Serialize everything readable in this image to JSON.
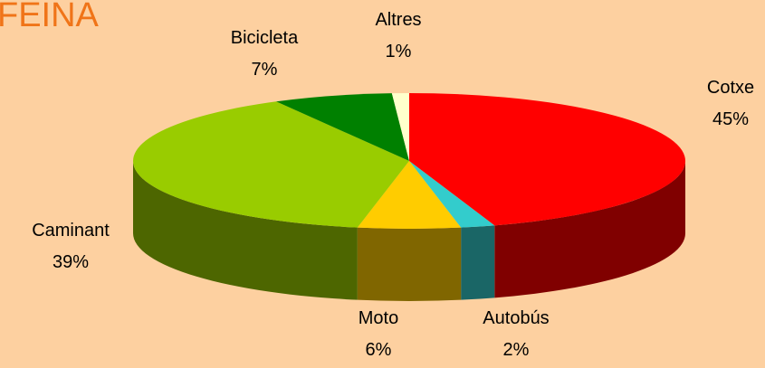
{
  "chart_data": {
    "type": "pie3d",
    "title": "FEINA",
    "categories": [
      "Cotxe",
      "Autobús",
      "Moto",
      "Caminant",
      "Bicicleta",
      "Altres"
    ],
    "values": [
      45,
      2,
      6,
      39,
      7,
      1
    ],
    "value_labels": [
      "45%",
      "2%",
      "6%",
      "39%",
      "7%",
      "1%"
    ],
    "colors": [
      "#ff0000",
      "#33cccc",
      "#ffcc00",
      "#99cc00",
      "#008000",
      "#ffffcc"
    ],
    "side_colors": [
      "#800000",
      "#1a6666",
      "#806600",
      "#4d6600",
      "#004000",
      "#808066"
    ]
  }
}
